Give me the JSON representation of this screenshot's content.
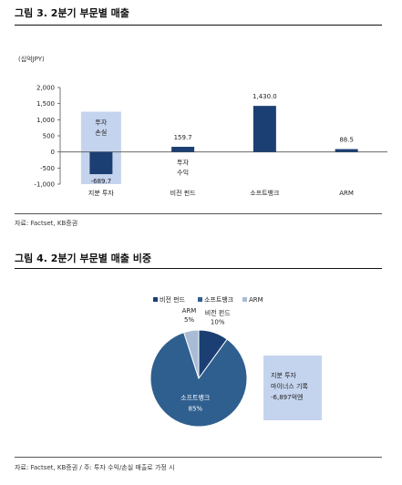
{
  "figure1": {
    "title": "그림 3. 2분기 부문별 매출",
    "source": "자료: Factset, KB증권"
  },
  "figure2": {
    "title": "그림 4. 2분기 부문별 매출 비중",
    "source": "자료: Factset, KB증권 / 주: 투자 수익/손실 매출로 가정 시"
  },
  "chart_data": [
    {
      "type": "bar",
      "title": "그림 3. 2분기 부문별 매출",
      "unit_label": "(십억JPY)",
      "categories": [
        "지분 투자",
        "비전 펀드",
        "소프트뱅크",
        "ARM"
      ],
      "values": [
        -689.7,
        159.7,
        1430.0,
        88.5
      ],
      "data_labels": [
        "-689.7",
        "159.7",
        "1,430.0",
        "88.5"
      ],
      "ylim": [
        -1000,
        2000
      ],
      "yticks": [
        -1000,
        -500,
        0,
        500,
        1000,
        1500,
        2000
      ],
      "ytick_labels": [
        "-1,000",
        "-500",
        "0",
        "500",
        "1,000",
        "1,500",
        "2,000"
      ],
      "bar_color": "#1c3f73",
      "annotations": [
        {
          "text_lines": [
            "투자",
            "손실"
          ],
          "category": "지분 투자",
          "y_range": [
            -1000,
            1250
          ],
          "color": "#c5d4ee"
        },
        {
          "text_lines": [
            "투자",
            "수익"
          ],
          "category": "비전 펀드"
        }
      ]
    },
    {
      "type": "pie",
      "title": "그림 4. 2분기 부문별 매출 비중",
      "labels": [
        "비전 펀드",
        "소프트뱅크",
        "ARM"
      ],
      "values": [
        10,
        85,
        5
      ],
      "percent_labels": [
        "10%",
        "85%",
        "5%"
      ],
      "colors": [
        "#1c3f73",
        "#2f5f8f",
        "#a9bcd6"
      ],
      "legend_position": "top",
      "callout": {
        "lines": [
          "지분 투자",
          "마이너스 기록",
          "-6,897억엔"
        ],
        "color": "#c5d4ee"
      }
    }
  ]
}
